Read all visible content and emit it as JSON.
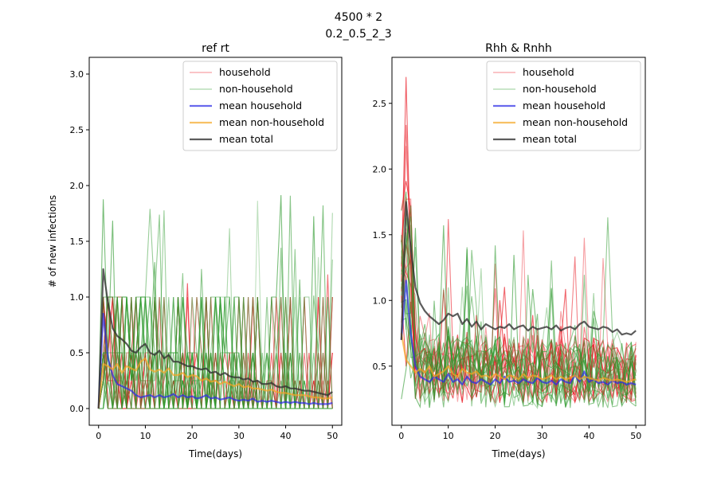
{
  "figure": {
    "suptitle_line1": "4500 * 2",
    "suptitle_line2": "0.2_0.5_2_3"
  },
  "colors": {
    "household": "#e8141e",
    "non_household": "#2e9a2e",
    "mean_household": "#2a2ae6",
    "mean_non_household": "#f5a623",
    "mean_total": "#333333"
  },
  "chart_data": [
    {
      "type": "line",
      "title": "ref rt",
      "xlabel": "Time(days)",
      "ylabel": "# of new infections",
      "xlim": [
        -2,
        52
      ],
      "ylim": [
        -0.15,
        3.15
      ],
      "xticks": [
        0,
        10,
        20,
        30,
        40,
        50
      ],
      "yticks": [
        0.0,
        0.5,
        1.0,
        1.5,
        2.0,
        2.5,
        3.0
      ],
      "ytick_labels": [
        "0.0",
        "0.5",
        "1.0",
        "1.5",
        "2.0",
        "2.5",
        "3.0"
      ],
      "grid": false,
      "legend_position": "top-right",
      "legend": [
        "household",
        "non-household",
        "mean household",
        "mean non-household",
        "mean total"
      ],
      "x": [
        0,
        1,
        2,
        3,
        4,
        5,
        6,
        7,
        8,
        9,
        10,
        11,
        12,
        13,
        14,
        15,
        16,
        17,
        18,
        19,
        20,
        21,
        22,
        23,
        24,
        25,
        26,
        27,
        28,
        29,
        30,
        31,
        32,
        33,
        34,
        35,
        36,
        37,
        38,
        39,
        40,
        41,
        42,
        43,
        44,
        45,
        46,
        47,
        48,
        49,
        50
      ],
      "series": [
        {
          "name": "mean household",
          "values": [
            0,
            0.85,
            0.45,
            0.3,
            0.22,
            0.2,
            0.18,
            0.16,
            0.12,
            0.1,
            0.11,
            0.12,
            0.1,
            0.12,
            0.1,
            0.11,
            0.13,
            0.1,
            0.12,
            0.1,
            0.11,
            0.09,
            0.1,
            0.12,
            0.09,
            0.1,
            0.08,
            0.09,
            0.1,
            0.08,
            0.07,
            0.08,
            0.07,
            0.09,
            0.06,
            0.07,
            0.06,
            0.07,
            0.06,
            0.05,
            0.06,
            0.05,
            0.06,
            0.05,
            0.05,
            0.04,
            0.05,
            0.04,
            0.04,
            0.04,
            0.05
          ]
        },
        {
          "name": "mean non-household",
          "values": [
            0,
            0.4,
            0.38,
            0.35,
            0.4,
            0.32,
            0.38,
            0.36,
            0.34,
            0.42,
            0.45,
            0.35,
            0.33,
            0.35,
            0.32,
            0.36,
            0.3,
            0.3,
            0.32,
            0.28,
            0.3,
            0.29,
            0.25,
            0.27,
            0.24,
            0.25,
            0.22,
            0.24,
            0.22,
            0.2,
            0.22,
            0.19,
            0.2,
            0.18,
            0.18,
            0.17,
            0.16,
            0.17,
            0.15,
            0.14,
            0.14,
            0.13,
            0.12,
            0.12,
            0.12,
            0.11,
            0.1,
            0.1,
            0.09,
            0.09,
            0.1
          ]
        },
        {
          "name": "mean total",
          "values": [
            0,
            1.25,
            0.95,
            0.72,
            0.65,
            0.62,
            0.58,
            0.52,
            0.5,
            0.55,
            0.58,
            0.5,
            0.48,
            0.52,
            0.45,
            0.48,
            0.42,
            0.42,
            0.4,
            0.38,
            0.38,
            0.36,
            0.35,
            0.36,
            0.32,
            0.33,
            0.3,
            0.32,
            0.29,
            0.28,
            0.28,
            0.26,
            0.27,
            0.24,
            0.25,
            0.22,
            0.22,
            0.23,
            0.2,
            0.19,
            0.2,
            0.18,
            0.18,
            0.17,
            0.16,
            0.16,
            0.15,
            0.14,
            0.13,
            0.12,
            0.15
          ]
        }
      ]
    },
    {
      "type": "line",
      "title": "Rhh & Rnhh",
      "xlabel": "Time(days)",
      "ylabel": "",
      "xlim": [
        -2,
        52
      ],
      "ylim": [
        0.05,
        2.85
      ],
      "xticks": [
        0,
        10,
        20,
        30,
        40,
        50
      ],
      "yticks": [
        0.5,
        1.0,
        1.5,
        2.0,
        2.5
      ],
      "ytick_labels": [
        "0.5",
        "1.0",
        "1.5",
        "2.0",
        "2.5"
      ],
      "grid": false,
      "legend_position": "top-right",
      "legend": [
        "household",
        "non-household",
        "mean household",
        "mean non-household",
        "mean total"
      ],
      "x": [
        0,
        1,
        2,
        3,
        4,
        5,
        6,
        7,
        8,
        9,
        10,
        11,
        12,
        13,
        14,
        15,
        16,
        17,
        18,
        19,
        20,
        21,
        22,
        23,
        24,
        25,
        26,
        27,
        28,
        29,
        30,
        31,
        32,
        33,
        34,
        35,
        36,
        37,
        38,
        39,
        40,
        41,
        42,
        43,
        44,
        45,
        46,
        47,
        48,
        49,
        50
      ],
      "series": [
        {
          "name": "mean household",
          "values": [
            0.7,
            1.15,
            0.75,
            0.5,
            0.42,
            0.4,
            0.38,
            0.42,
            0.4,
            0.38,
            0.44,
            0.38,
            0.4,
            0.36,
            0.42,
            0.38,
            0.37,
            0.4,
            0.38,
            0.36,
            0.4,
            0.37,
            0.42,
            0.38,
            0.39,
            0.37,
            0.4,
            0.38,
            0.37,
            0.41,
            0.38,
            0.37,
            0.39,
            0.36,
            0.4,
            0.38,
            0.37,
            0.43,
            0.38,
            0.46,
            0.38,
            0.4,
            0.37,
            0.38,
            0.36,
            0.39,
            0.37,
            0.38,
            0.36,
            0.37,
            0.36
          ]
        },
        {
          "name": "mean non-household",
          "values": [
            0.75,
            0.55,
            0.5,
            0.45,
            0.48,
            0.45,
            0.5,
            0.42,
            0.44,
            0.46,
            0.5,
            0.44,
            0.42,
            0.48,
            0.45,
            0.44,
            0.46,
            0.42,
            0.43,
            0.41,
            0.44,
            0.42,
            0.4,
            0.43,
            0.42,
            0.4,
            0.44,
            0.41,
            0.43,
            0.42,
            0.4,
            0.41,
            0.43,
            0.4,
            0.42,
            0.4,
            0.41,
            0.43,
            0.4,
            0.42,
            0.41,
            0.4,
            0.39,
            0.41,
            0.4,
            0.39,
            0.4,
            0.39,
            0.38,
            0.39,
            0.4
          ]
        },
        {
          "name": "mean total",
          "values": [
            0.7,
            1.75,
            1.4,
            1.1,
            0.98,
            0.92,
            0.88,
            0.85,
            0.82,
            0.85,
            0.9,
            0.88,
            0.9,
            0.82,
            0.86,
            0.8,
            0.84,
            0.78,
            0.82,
            0.8,
            0.78,
            0.8,
            0.79,
            0.82,
            0.78,
            0.8,
            0.81,
            0.77,
            0.8,
            0.78,
            0.79,
            0.8,
            0.78,
            0.81,
            0.77,
            0.79,
            0.8,
            0.78,
            0.82,
            0.84,
            0.8,
            0.79,
            0.78,
            0.8,
            0.79,
            0.76,
            0.78,
            0.74,
            0.75,
            0.74,
            0.77
          ]
        }
      ]
    }
  ]
}
